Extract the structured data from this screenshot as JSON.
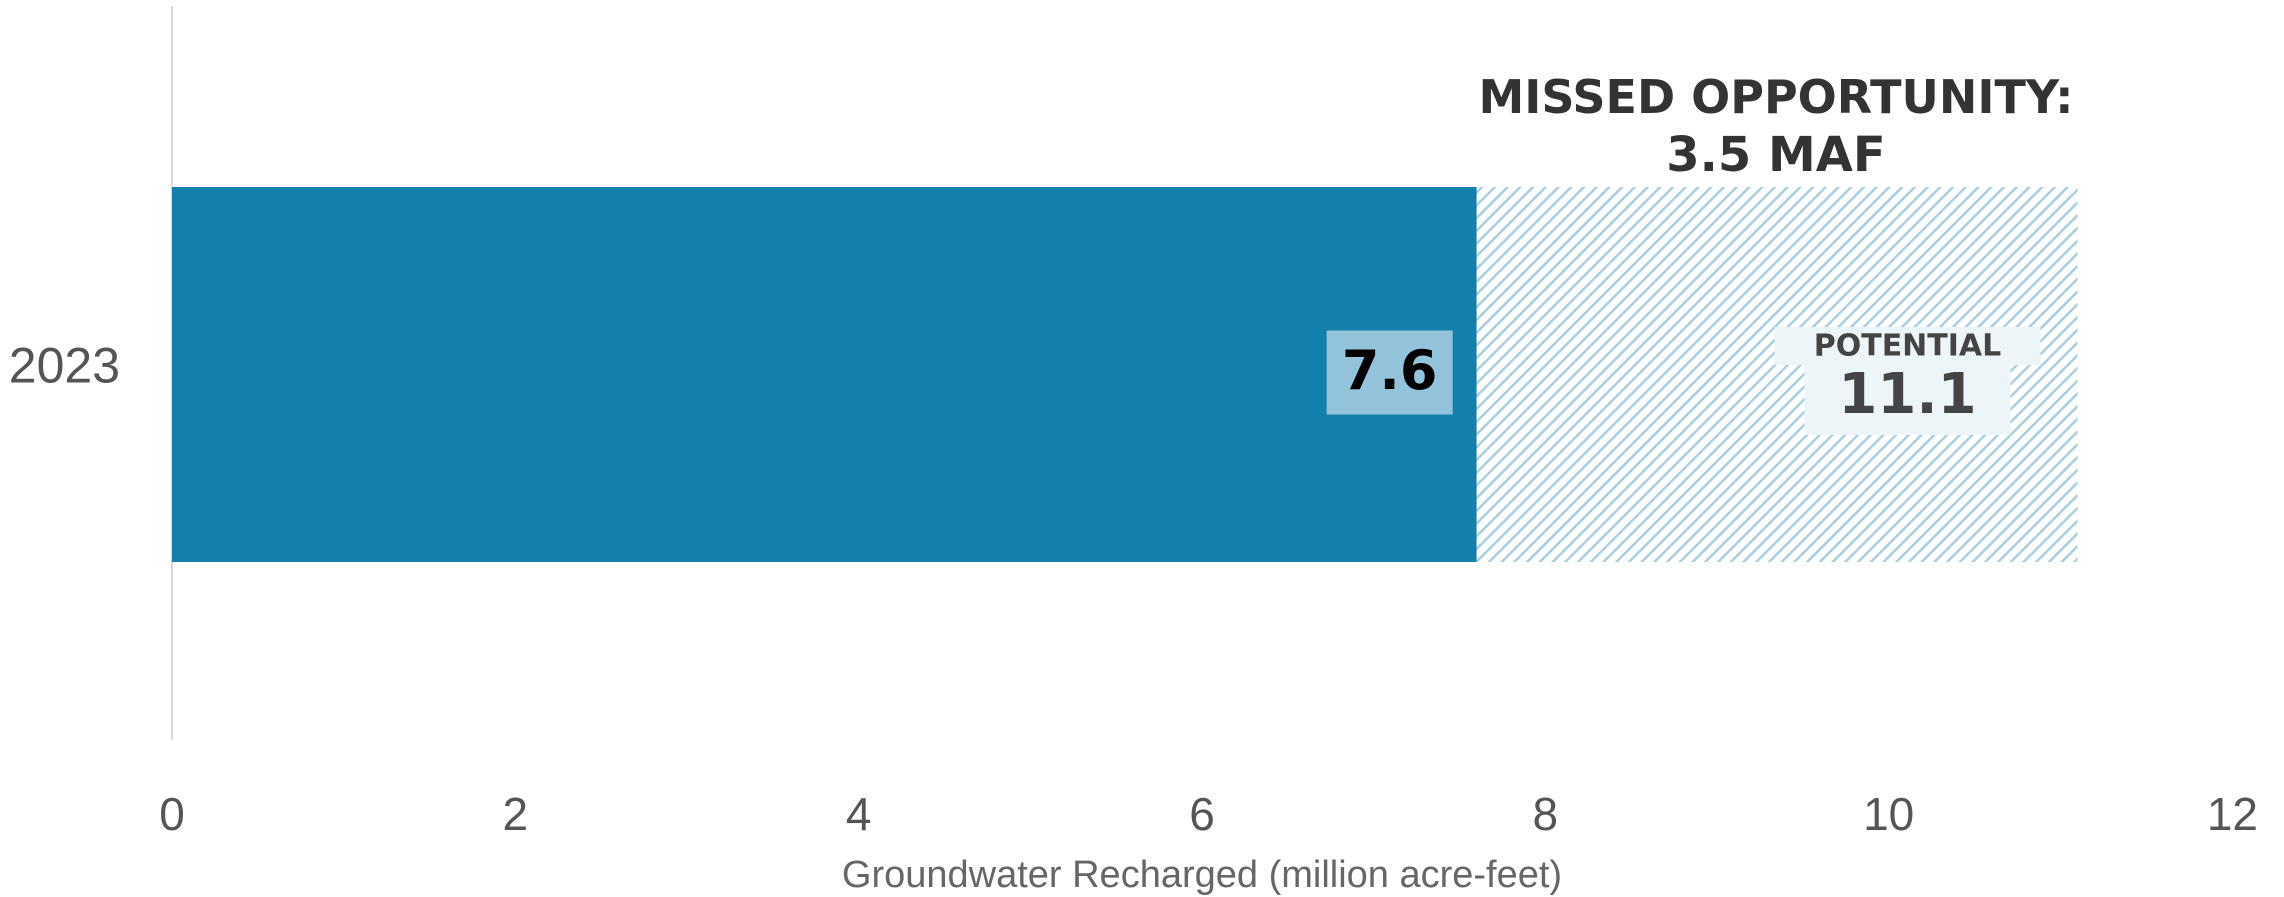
{
  "chart_data": {
    "type": "bar",
    "orientation": "horizontal",
    "categories": [
      "2023"
    ],
    "series": [
      {
        "values": [
          7.6
        ],
        "color": "#157fab",
        "pattern": "solid"
      },
      {
        "values": [
          3.5
        ],
        "color": "#a9cfe1",
        "pattern": "hatched"
      }
    ],
    "value_labels": {
      "actual": "7.6",
      "potential_caption": "POTENTIAL",
      "potential": "11.1"
    },
    "annotation": {
      "line1": "MISSED OPPORTUNITY:",
      "line2": "3.5 MAF"
    },
    "xlabel": "Groundwater Recharged (million acre-feet)",
    "xlim": [
      0,
      12
    ],
    "xticks": [
      0,
      2,
      4,
      6,
      8,
      10,
      12
    ],
    "grid": false,
    "colors": {
      "actual": "#157fab",
      "actual_label_bg": "#93c4dc",
      "potential_hatch": "#a9cfe1",
      "potential_label_bg": "#eef5f9",
      "axis": "#cccccc",
      "text": "#333333"
    }
  }
}
